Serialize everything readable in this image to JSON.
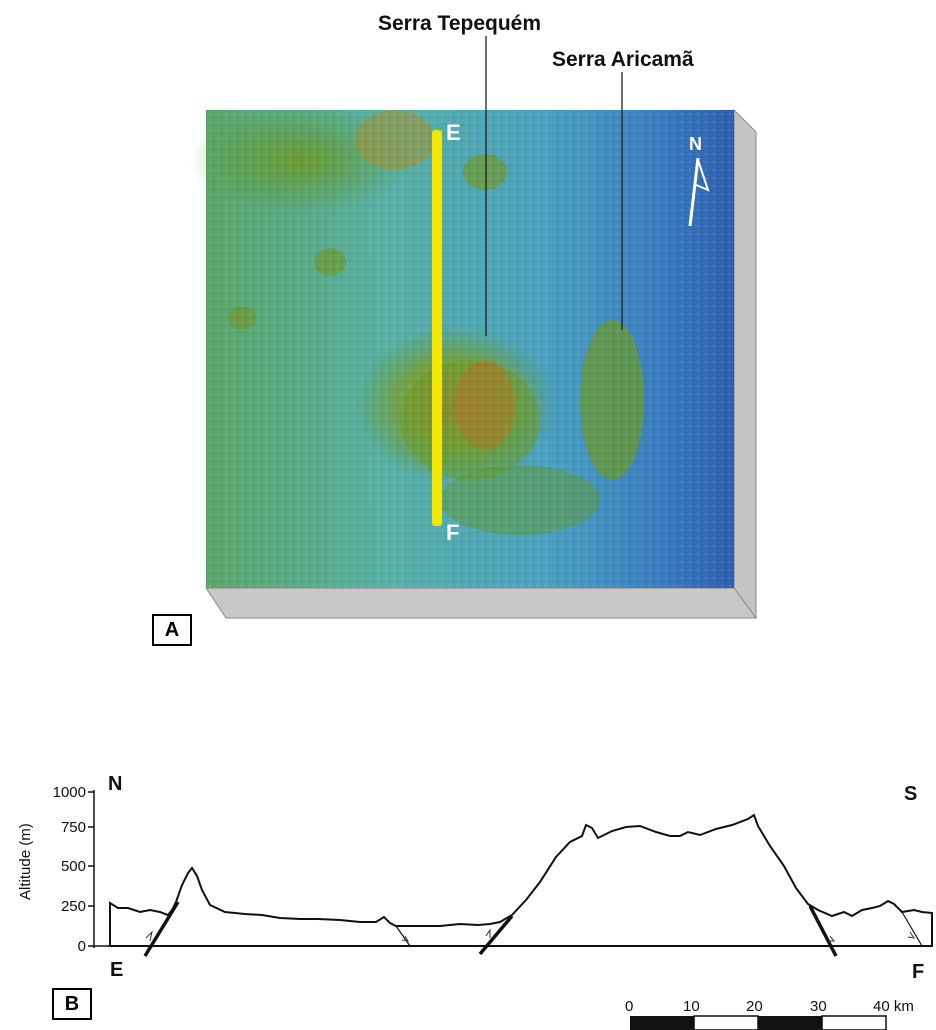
{
  "panel_a": {
    "label": "A",
    "features": {
      "serra_tepequem": "Serra Tepequém",
      "serra_aricama": "Serra Aricamã"
    },
    "profile_line": {
      "start": "E",
      "end": "F",
      "color": "#f5e600"
    },
    "north": "N",
    "colors": {
      "lowland_blue": "#2d6fb3",
      "plain_cyan": "#4ea9b0",
      "upland_green": "#5e9b3a",
      "peak_brown": "#b0702a"
    }
  },
  "panel_b": {
    "label": "B",
    "y_axis_title": "Altitude (m)",
    "y_ticks": [
      "1000",
      "750",
      "500",
      "250",
      "0"
    ],
    "left_end": "N",
    "right_end": "S",
    "start": "E",
    "end": "F",
    "scale_labels": [
      "0",
      "10",
      "20",
      "30",
      "40 km"
    ]
  }
}
